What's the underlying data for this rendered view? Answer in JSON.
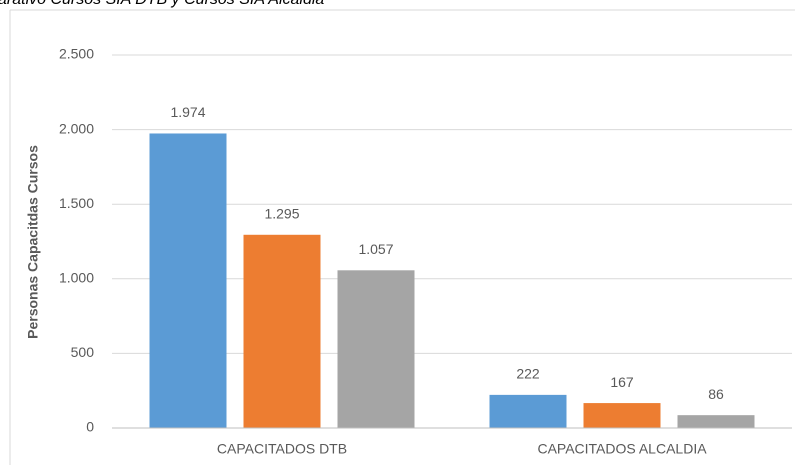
{
  "chart_data": {
    "type": "bar",
    "title": "arativo Cursos SIA DTB y Cursos SIA Alcaldia",
    "ylabel": "Personas Capacitdas Cursos",
    "categories": [
      "CAPACITADOS DTB",
      "CAPACITADOS ALCALDIA"
    ],
    "series": [
      {
        "color": "#5b9bd5",
        "values": [
          1974,
          222
        ],
        "value_labels": [
          "1.974",
          "222"
        ]
      },
      {
        "color": "#ed7d31",
        "values": [
          1295,
          167
        ],
        "value_labels": [
          "1.295",
          "167"
        ]
      },
      {
        "color": "#a5a5a5",
        "values": [
          1057,
          86
        ],
        "value_labels": [
          "1.057",
          "86"
        ]
      }
    ],
    "ylim": [
      0,
      2500
    ],
    "yticks": [
      0,
      500,
      {
        "value": 1000,
        "label": "1.000"
      },
      {
        "value": 1500,
        "label": "1.500"
      },
      {
        "value": 2000,
        "label": "2.000"
      },
      {
        "value": 2500,
        "label": "2.500"
      }
    ],
    "grid": true
  }
}
